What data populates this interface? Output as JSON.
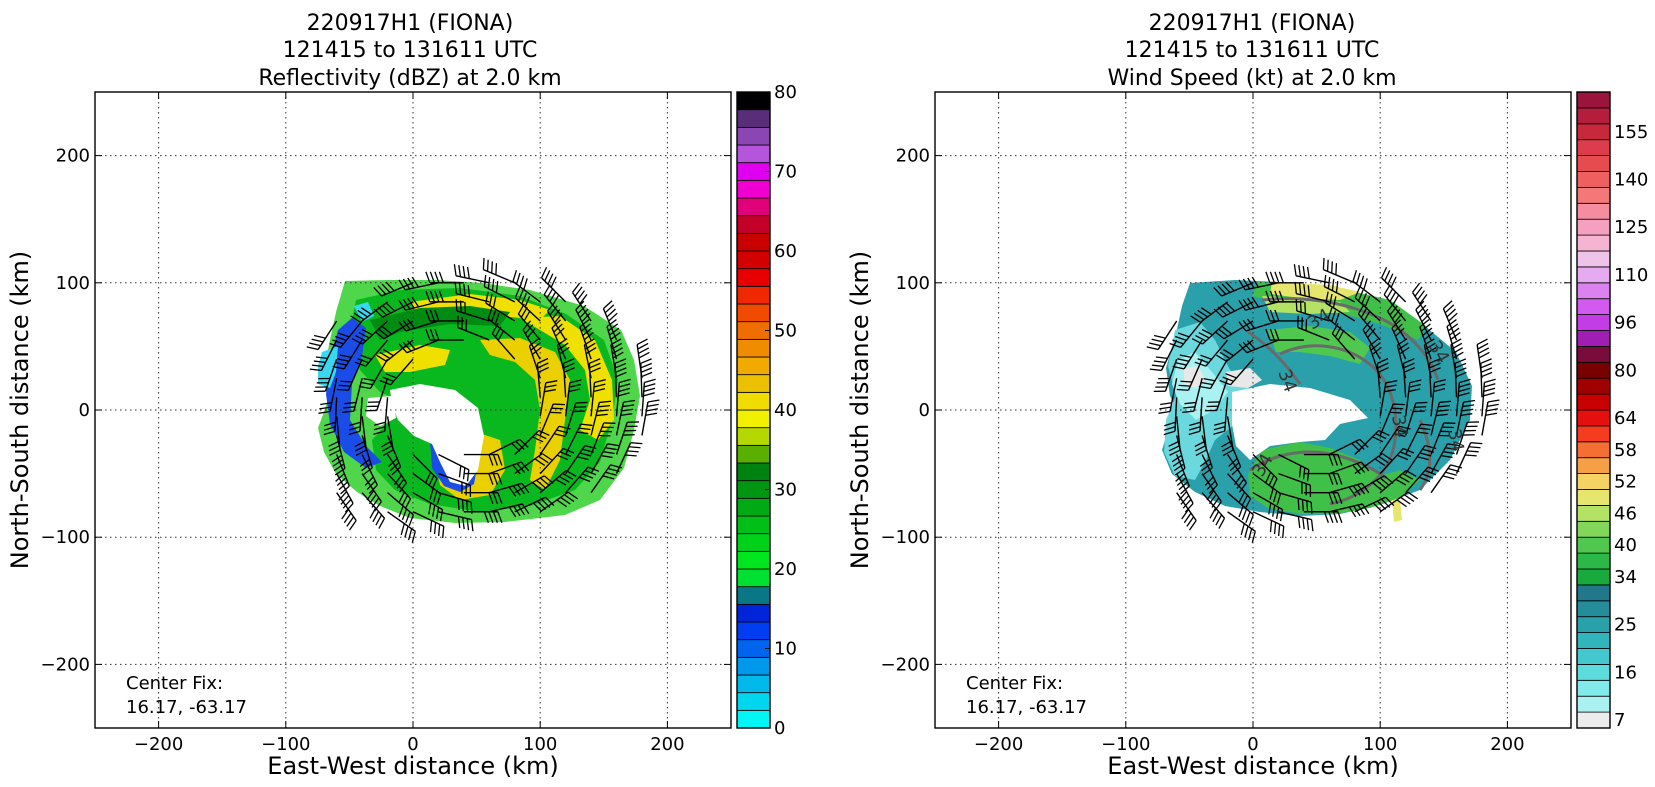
{
  "chart_data": [
    {
      "type": "heatmap",
      "title": "220917H1 (FIONA)",
      "subtitle": "121415 to 131611 UTC",
      "field": "Reflectivity (dBZ) at 2.0 km",
      "xlabel": "East-West distance (km)",
      "ylabel": "North-South distance (km)",
      "xlim": [
        -250,
        250
      ],
      "ylim": [
        -250,
        250
      ],
      "xticks": [
        -200,
        -100,
        0,
        100,
        200
      ],
      "yticks": [
        -200,
        -100,
        0,
        100,
        200
      ],
      "xtick_labels": [
        "−200",
        "−100",
        "0",
        "100",
        "200"
      ],
      "ytick_labels": [
        "−200",
        "−100",
        "0",
        "100",
        "200"
      ],
      "grid": true,
      "annotation": [
        "Center Fix:",
        "16.17, -63.17"
      ],
      "colorbar": {
        "min": 0,
        "max": 80,
        "step": 2.5,
        "tick_values": [
          0,
          10,
          20,
          30,
          40,
          50,
          60,
          70,
          80
        ],
        "tick_labels": [
          "0",
          "10",
          "20",
          "30",
          "40",
          "50",
          "60",
          "70",
          "80"
        ],
        "colors": [
          "#00f5f5",
          "#00d7ee",
          "#00b8ea",
          "#0098ea",
          "#0064ee",
          "#003cf0",
          "#0024d8",
          "#0a7787",
          "#00e032",
          "#00e61e",
          "#00d21a",
          "#00c018",
          "#00aa14",
          "#009612",
          "#008210",
          "#5ab000",
          "#b4d800",
          "#f0f000",
          "#f0dc00",
          "#ebc000",
          "#f0aa00",
          "#f08c00",
          "#f06e00",
          "#f04b00",
          "#f02800",
          "#e60000",
          "#d20000",
          "#c80000",
          "#c40028",
          "#e0007a",
          "#f000d0",
          "#e000f0",
          "#b455dc",
          "#8c46b4",
          "#5a2d78",
          "#000000"
        ]
      }
    },
    {
      "type": "heatmap",
      "title": "220917H1 (FIONA)",
      "subtitle": "121415 to 131611 UTC",
      "field": "Wind Speed (kt) at 2.0 km",
      "xlabel": "East-West distance (km)",
      "ylabel": "North-South distance (km)",
      "xlim": [
        -250,
        250
      ],
      "ylim": [
        -250,
        250
      ],
      "xticks": [
        -200,
        -100,
        0,
        100,
        200
      ],
      "yticks": [
        -200,
        -100,
        0,
        100,
        200
      ],
      "xtick_labels": [
        "−200",
        "−100",
        "0",
        "100",
        "200"
      ],
      "ytick_labels": [
        "−200",
        "−100",
        "0",
        "100",
        "200"
      ],
      "grid": true,
      "annotation": [
        "Center Fix:",
        "16.17, -63.17"
      ],
      "contour_labels": [
        "34",
        "34",
        "34",
        "34",
        "34",
        "34"
      ],
      "colorbar": {
        "tick_labels": [
          "7",
          "16",
          "25",
          "34",
          "40",
          "46",
          "52",
          "58",
          "64",
          "80",
          "96",
          "110",
          "125",
          "140",
          "155"
        ],
        "tick_index": [
          0,
          3,
          6,
          9,
          11,
          13,
          15,
          17,
          19,
          22,
          25,
          28,
          31,
          34,
          37
        ],
        "colors": [
          "#ececec",
          "#aaf2f2",
          "#82eaea",
          "#5cdcdc",
          "#42c8ce",
          "#32b4bc",
          "#2aa0aa",
          "#258c9a",
          "#20788a",
          "#18aa3c",
          "#2cb848",
          "#50c850",
          "#82d658",
          "#b4e264",
          "#e6e66e",
          "#f5d264",
          "#f5a046",
          "#f56e32",
          "#f53c1e",
          "#e60f0f",
          "#c80000",
          "#a00000",
          "#780000",
          "#7a0c3c",
          "#a01eb4",
          "#c33ce6",
          "#d25af0",
          "#dc82f0",
          "#e6aaf0",
          "#f0c3eb",
          "#f5b4d2",
          "#f5a0be",
          "#f58ca0",
          "#f57878",
          "#ee6060",
          "#e64b50",
          "#dc3c4b",
          "#c8283c",
          "#b41e3c",
          "#9b143c"
        ]
      }
    }
  ]
}
